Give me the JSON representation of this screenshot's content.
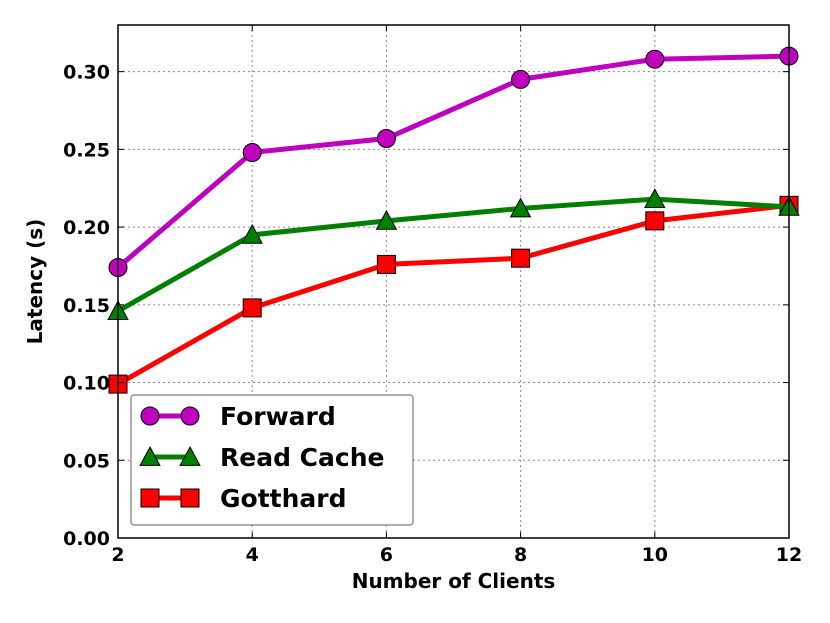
{
  "chart_data": {
    "type": "line",
    "xlabel": "Number of Clients",
    "ylabel": "Latency (s)",
    "x": [
      2,
      4,
      6,
      8,
      10,
      12
    ],
    "xlim": [
      2,
      12
    ],
    "ylim": [
      0.0,
      0.33
    ],
    "xticks": [
      "2",
      "4",
      "6",
      "8",
      "10",
      "12"
    ],
    "yticks": [
      "0.00",
      "0.05",
      "0.10",
      "0.15",
      "0.20",
      "0.25",
      "0.30"
    ],
    "grid": true,
    "legend_position": "bottom-left",
    "series": [
      {
        "name": "Forward",
        "color": "#bf00bf",
        "marker": "circle",
        "values": [
          0.174,
          0.248,
          0.257,
          0.295,
          0.308,
          0.31
        ]
      },
      {
        "name": "Read Cache",
        "color": "#007f00",
        "marker": "triangle",
        "values": [
          0.146,
          0.195,
          0.204,
          0.212,
          0.218,
          0.213
        ]
      },
      {
        "name": "Gotthard",
        "color": "#ff0000",
        "marker": "square",
        "values": [
          0.099,
          0.148,
          0.176,
          0.18,
          0.204,
          0.214
        ]
      }
    ]
  }
}
